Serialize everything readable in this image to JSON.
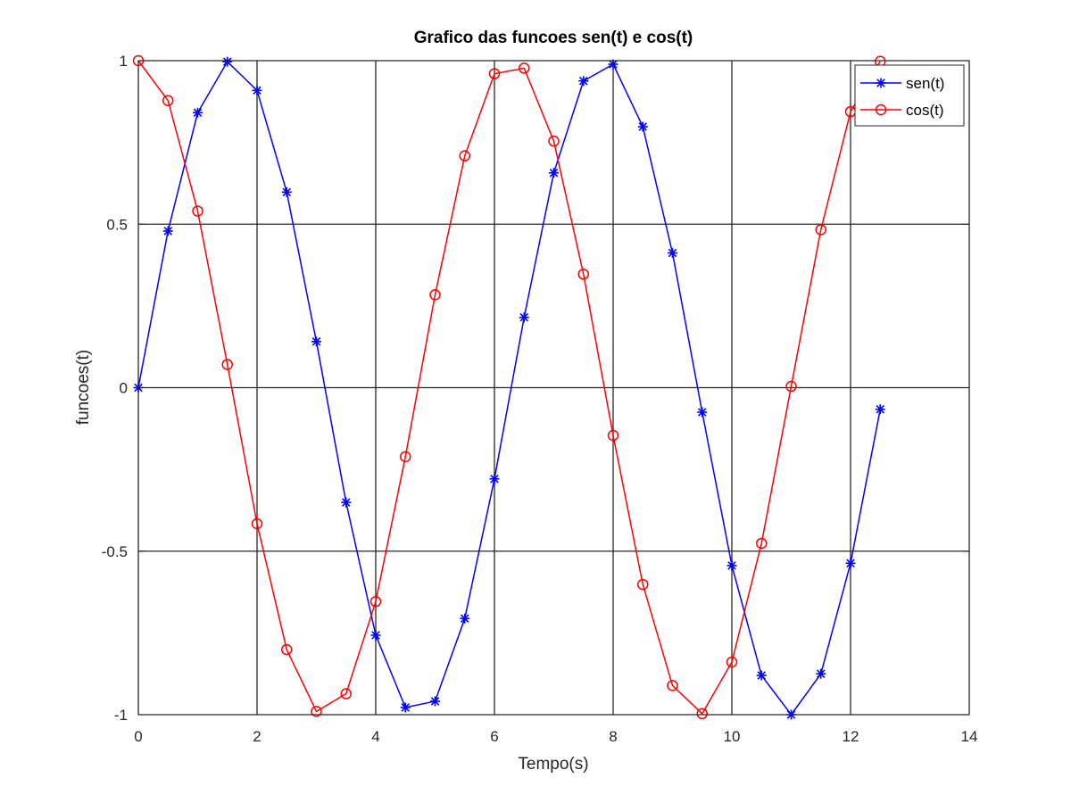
{
  "chart_data": {
    "type": "line",
    "title": "Grafico das funcoes sen(t) e cos(t)",
    "xlabel": "Tempo(s)",
    "ylabel": "funcoes(t)",
    "xlim": [
      0,
      14
    ],
    "ylim": [
      -1,
      1
    ],
    "xticks": [
      0,
      2,
      4,
      6,
      8,
      10,
      12,
      14
    ],
    "xtick_labels": [
      "0",
      "2",
      "4",
      "6",
      "8",
      "10",
      "12",
      "14"
    ],
    "yticks": [
      -1,
      -0.5,
      0,
      0.5,
      1
    ],
    "ytick_labels": [
      "-1",
      "-0.5",
      "0",
      "0.5",
      "1"
    ],
    "grid": true,
    "legend_position": "top-right",
    "x": [
      0,
      0.5,
      1,
      1.5,
      2,
      2.5,
      3,
      3.5,
      4,
      4.5,
      5,
      5.5,
      6,
      6.5,
      7,
      7.5,
      8,
      8.5,
      9,
      9.5,
      10,
      10.5,
      11,
      11.5,
      12,
      12.5
    ],
    "series": [
      {
        "name": "sen(t)",
        "color": "#0000ff",
        "marker": "asterisk",
        "values": [
          0,
          0.479,
          0.841,
          0.997,
          0.909,
          0.598,
          0.141,
          -0.351,
          -0.757,
          -0.978,
          -0.959,
          -0.706,
          -0.279,
          0.215,
          0.657,
          0.938,
          0.989,
          0.798,
          0.412,
          -0.075,
          -0.544,
          -0.88,
          -1.0,
          -0.875,
          -0.537,
          -0.066
        ]
      },
      {
        "name": "cos(t)",
        "color": "#ff0000",
        "marker": "circle",
        "values": [
          1,
          0.878,
          0.54,
          0.071,
          -0.416,
          -0.801,
          -0.99,
          -0.936,
          -0.654,
          -0.211,
          0.284,
          0.709,
          0.96,
          0.977,
          0.754,
          0.347,
          -0.146,
          -0.602,
          -0.911,
          -0.997,
          -0.839,
          -0.476,
          0.004,
          0.483,
          0.844,
          0.998
        ]
      }
    ]
  }
}
